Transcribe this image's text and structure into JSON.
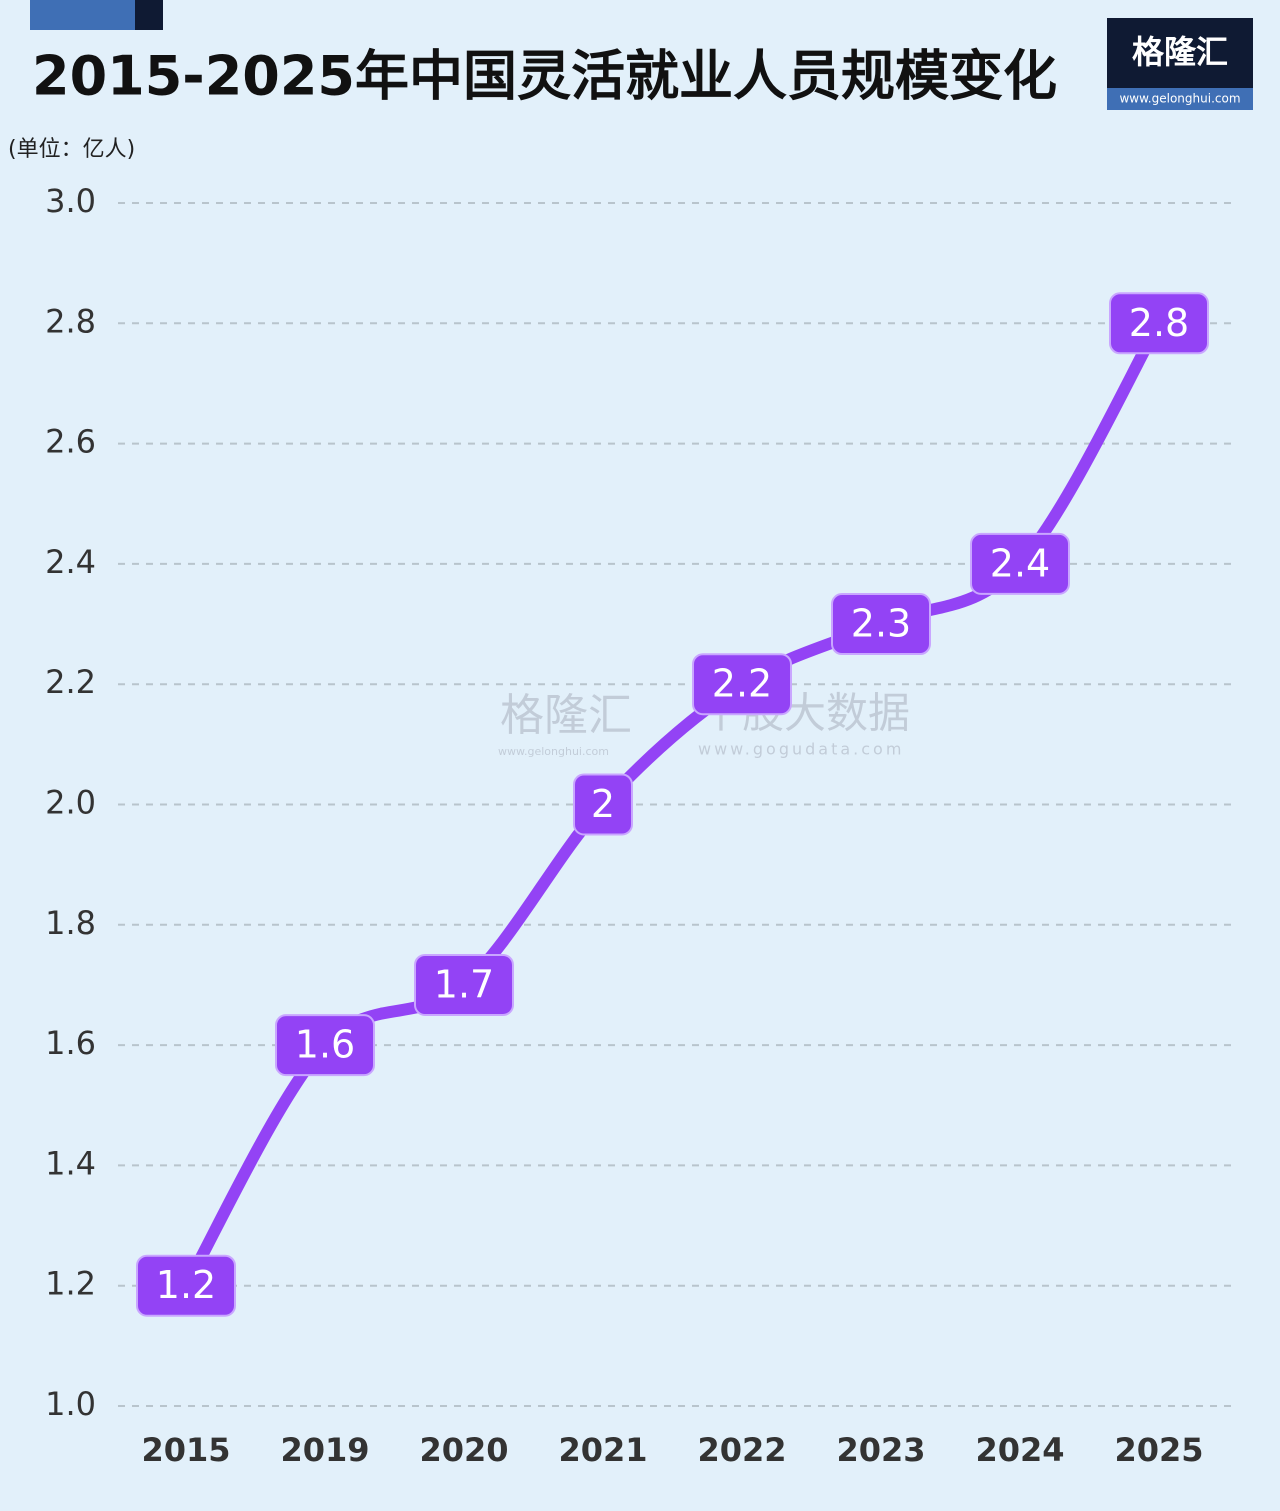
{
  "chart_data": {
    "type": "line",
    "title": "2015-2025年中国灵活就业人员规模变化",
    "unit": "(单位：亿人)",
    "logo": {
      "name": "格隆汇",
      "url": "www.gelonghui.com"
    },
    "watermark": {
      "name": "格隆汇",
      "url": "www.gelonghui.com",
      "product": "个股大数据",
      "product_url": "www.gogudata.com"
    },
    "categories": [
      "2015",
      "2019",
      "2020",
      "2021",
      "2022",
      "2023",
      "2024",
      "2025"
    ],
    "values": [
      1.2,
      1.6,
      1.7,
      2,
      2.2,
      2.3,
      2.4,
      2.8
    ],
    "color": "#9343f5",
    "ylim": [
      1,
      3
    ],
    "yticks": [
      {
        "value": 1,
        "label": "1.0"
      },
      1.2,
      1.4,
      1.6,
      1.8,
      {
        "value": 2,
        "label": "2.0"
      },
      2.2,
      2.4,
      2.6,
      2.8,
      {
        "value": 3,
        "label": "3.0"
      }
    ],
    "grid": true
  }
}
